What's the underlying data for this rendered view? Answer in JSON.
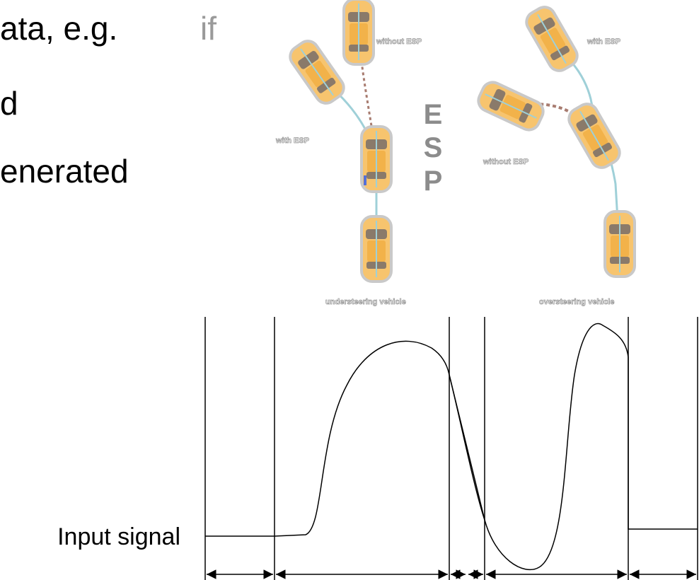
{
  "slide": {
    "text_lines": [
      "ata, e.g.",
      "d",
      "enerated"
    ],
    "highlight": "if",
    "esp_letters": [
      "E",
      "S",
      "P"
    ],
    "understeer": {
      "without": "without ESP",
      "with": "with ESP",
      "caption": "understeering vehicle"
    },
    "oversteer": {
      "with": "with ESP",
      "without": "without ESP",
      "caption": "oversteering vehicle"
    },
    "signal_label": "Input signal"
  }
}
